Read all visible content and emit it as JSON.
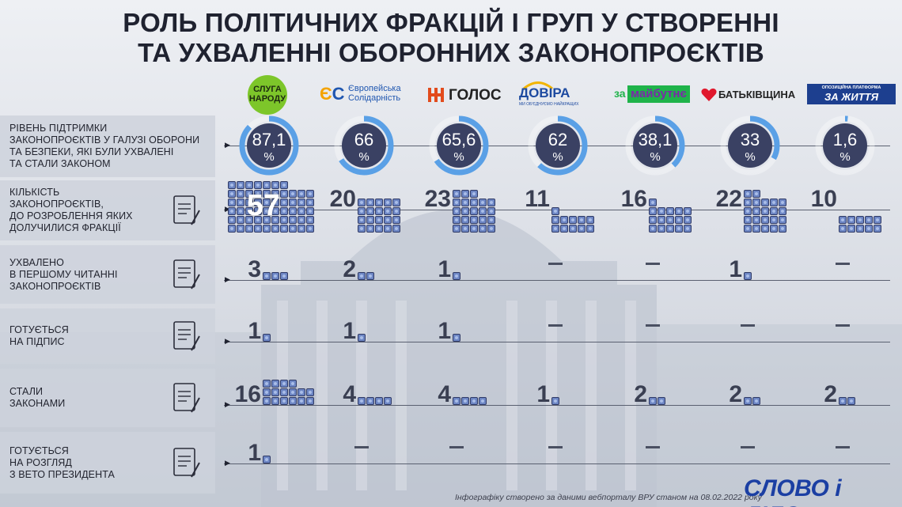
{
  "title": {
    "line1": "РОЛЬ ПОЛІТИЧНИХ ФРАКЦІЙ І ГРУП У СТВОРЕННІ",
    "line2": "ТА УХВАЛЕННІ ОБОРОННИХ ЗАКОНОПРОЄКТІВ"
  },
  "factions": [
    {
      "logo_text": "СЛУГА НАРОДУ",
      "logo_line1": "СЛУГА",
      "logo_line2": "НАРОДУ",
      "logo_color": "#7dc62a"
    },
    {
      "logo_text": "Європейська Солідарність",
      "logo_line1": "Європейська",
      "logo_line2": "Солідарність",
      "logo_color": "#1f56b0",
      "mark": "ЄС",
      "mark_color": "#f4a300"
    },
    {
      "logo_text": "ГОЛОС",
      "logo_color": "#222222",
      "mark_color": "#e24b1c"
    },
    {
      "logo_text": "ДОВІРА",
      "logo_sub": "МИ ОБ'ЄДНУЄМО НАЙКРАЩИХ",
      "logo_color": "#1d4aa0",
      "mark_color": "#f2b400"
    },
    {
      "logo_text": "майбутнє",
      "logo_prefix": "за",
      "logo_color": "#7a2aa8",
      "mark_color": "#1fb34a"
    },
    {
      "logo_text": "БАТЬКІВЩИНА",
      "logo_color": "#222222",
      "mark_color": "#e0182d"
    },
    {
      "logo_text": "ЗА ЖИТТЯ",
      "logo_top": "ОПОЗИЦІЙНА ПЛАТФОРМА",
      "logo_color": "#1d3f8f"
    }
  ],
  "rows": [
    {
      "label": "РІВЕНЬ ПІДТРИМКИ ЗАКОНОПРОЄКТІВ У ГАЛУЗІ ОБОРОНИ ТА БЕЗПЕКИ, ЯКІ БУЛИ УХВАЛЕНІ ТА СТАЛИ ЗАКОНОМ",
      "lines": [
        "РІВЕНЬ ПІДТРИМКИ",
        "ЗАКОНОПРОЄКТІВ У ГАЛУЗІ ОБОРОНИ",
        "ТА БЕЗПЕКИ, ЯКІ БУЛИ УХВАЛЕНІ",
        "ТА СТАЛИ ЗАКОНОМ"
      ],
      "icon": "none"
    },
    {
      "label": "КІЛЬКІСТЬ ЗАКОНОПРОЄКТІВ, ДО РОЗРОБЛЕННЯ ЯКИХ ДОЛУЧИЛИСЯ ФРАКЦІЇ",
      "lines": [
        "КІЛЬКІСТЬ",
        "ЗАКОНОПРОЄКТІВ,",
        "ДО РОЗРОБЛЕННЯ ЯКИХ",
        "ДОЛУЧИЛИСЯ ФРАКЦІЇ"
      ],
      "icon": "seal-document-icon"
    },
    {
      "label": "УХВАЛЕНО В ПЕРШОМУ ЧИТАННІ ЗАКОНОПРОЄКТІВ",
      "lines": [
        "УХВАЛЕНО",
        "В ПЕРШОМУ ЧИТАННІ",
        "ЗАКОНОПРОЄКТІВ"
      ],
      "icon": "documents-icon"
    },
    {
      "label": "ГОТУЄТЬСЯ НА ПІДПИС",
      "lines": [
        "ГОТУЄТЬСЯ",
        "НА ПІДПИС"
      ],
      "icon": "pen-signature-icon"
    },
    {
      "label": "СТАЛИ ЗАКОНАМИ",
      "lines": [
        "СТАЛИ",
        "ЗАКОНАМИ"
      ],
      "icon": "book-hand-icon"
    },
    {
      "label": "ГОТУЄТЬСЯ НА РОЗГЛЯД З ВЕТО ПРЕЗИДЕНТА",
      "lines": [
        "ГОТУЄТЬСЯ",
        "НА РОЗГЛЯД",
        "З ВЕТО ПРЕЗИДЕНТА"
      ],
      "icon": "checklist-icon"
    }
  ],
  "dash": "–",
  "percent_sign": "%",
  "chart_data": {
    "type": "table",
    "title": "РОЛЬ ПОЛІТИЧНИХ ФРАКЦІЙ І ГРУП У СТВОРЕННІ ТА УХВАЛЕННІ ОБОРОННИХ ЗАКОНОПРОЄКТІВ",
    "categories": [
      "Слуга народу",
      "Європейська Солідарність",
      "Голос",
      "Довіра",
      "За майбутнє",
      "Батьківщина",
      "Опозиційна платформа – За життя"
    ],
    "series": [
      {
        "name": "РІВЕНЬ ПІДТРИМКИ ЗАКОНОПРОЄКТІВ У ГАЛУЗІ ОБОРОНИ ТА БЕЗПЕКИ, ЯКІ БУЛИ УХВАЛЕНІ ТА СТАЛИ ЗАКОНОМ",
        "values": [
          87.1,
          66,
          65.6,
          62,
          38.1,
          33,
          1.6
        ],
        "display": [
          "87,1",
          "66",
          "65,6",
          "62",
          "38,1",
          "33",
          "1,6"
        ]
      },
      {
        "name": "КІЛЬКІСТЬ ЗАКОНОПРОЄКТІВ, ДО РОЗРОБЛЕННЯ ЯКИХ ДОЛУЧИЛИСЯ ФРАКЦІЇ",
        "values": [
          57,
          20,
          23,
          11,
          16,
          22,
          10
        ]
      },
      {
        "name": "УХВАЛЕНО В ПЕРШОМУ ЧИТАННІ ЗАКОНОПРОЄКТІВ",
        "values": [
          3,
          2,
          1,
          null,
          null,
          1,
          null
        ]
      },
      {
        "name": "ГОТУЄТЬСЯ НА ПІДПИС",
        "values": [
          1,
          1,
          1,
          null,
          null,
          null,
          null
        ]
      },
      {
        "name": "СТАЛИ ЗАКОНАМИ",
        "values": [
          16,
          4,
          4,
          1,
          2,
          2,
          2
        ]
      },
      {
        "name": "ГОТУЄТЬСЯ НА РОЗГЛЯД З ВЕТО ПРЕЗИДЕНТА",
        "values": [
          1,
          null,
          null,
          null,
          null,
          null,
          null
        ]
      }
    ]
  },
  "footer": "Інфографіку створено за даними вебпорталу ВРУ станом на 08.02.2022 року",
  "brand": "СЛОВО і ДІЛО",
  "watermark": "СЛОВО і ДІЛО",
  "colors": {
    "square_fill": "#6d86c4",
    "square_border": "#2f3a66",
    "circle_dark": "#3a4163",
    "circle_ring": "#5aa0e6"
  }
}
